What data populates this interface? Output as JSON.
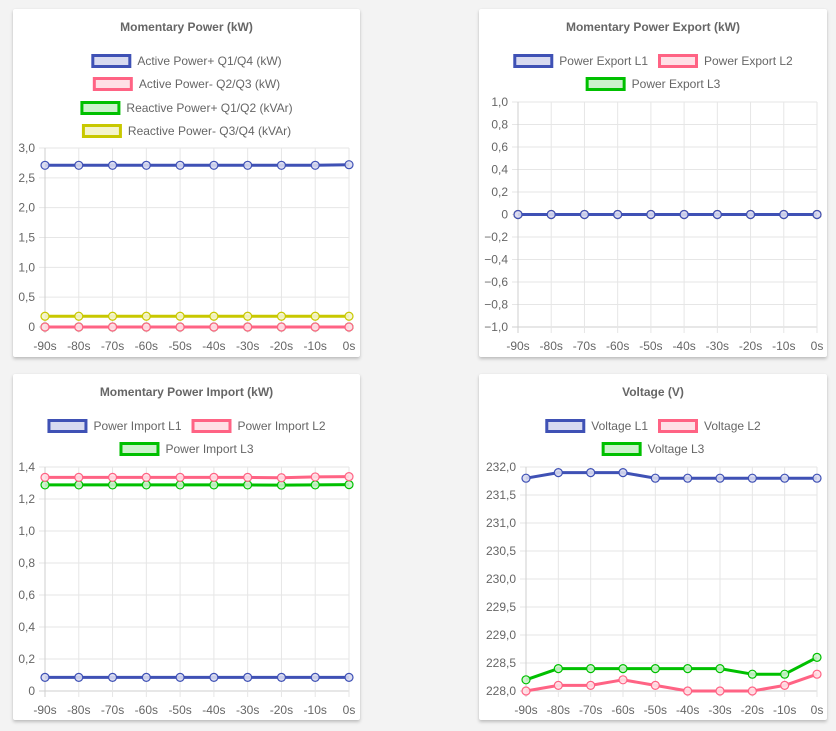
{
  "colors": {
    "blue": "#3f51b5",
    "blue_fill": "#d8daf0",
    "pink": "#ff6384",
    "pink_fill": "#ffe0e6",
    "green": "#00c000",
    "green_fill": "#ccf2cc",
    "yellow": "#c8c800",
    "yellow_fill": "#f4f4cc"
  },
  "chart_data": [
    {
      "id": "momentary-power",
      "type": "line",
      "title": "Momentary Power (kW)",
      "categories": [
        "-90s",
        "-80s",
        "-70s",
        "-60s",
        "-50s",
        "-40s",
        "-30s",
        "-20s",
        "-10s",
        "0s"
      ],
      "yticks": [
        "0",
        "0,5",
        "1,0",
        "1,5",
        "2,0",
        "2,5",
        "3,0"
      ],
      "ytick_values": [
        0,
        0.5,
        1.0,
        1.5,
        2.0,
        2.5,
        3.0
      ],
      "ylim": [
        0,
        3.0
      ],
      "legend_position": "top",
      "grid": true,
      "series": [
        {
          "name": "Active Power+ Q1/Q4 (kW)",
          "color": "blue",
          "values": [
            2.71,
            2.71,
            2.71,
            2.71,
            2.71,
            2.71,
            2.71,
            2.71,
            2.71,
            2.72
          ]
        },
        {
          "name": "Active Power- Q2/Q3 (kW)",
          "color": "pink",
          "values": [
            0,
            0,
            0,
            0,
            0,
            0,
            0,
            0,
            0,
            0
          ]
        },
        {
          "name": "Reactive Power+ Q1/Q2 (kVAr)",
          "color": "green",
          "values": [
            0,
            0,
            0,
            0,
            0,
            0,
            0,
            0,
            0,
            0
          ]
        },
        {
          "name": "Reactive Power- Q3/Q4 (kVAr)",
          "color": "yellow",
          "values": [
            0.18,
            0.18,
            0.18,
            0.18,
            0.18,
            0.18,
            0.18,
            0.18,
            0.18,
            0.18
          ]
        }
      ]
    },
    {
      "id": "momentary-power-export",
      "type": "line",
      "title": "Momentary Power Export (kW)",
      "categories": [
        "-90s",
        "-80s",
        "-70s",
        "-60s",
        "-50s",
        "-40s",
        "-30s",
        "-20s",
        "-10s",
        "0s"
      ],
      "yticks": [
        "−1,0",
        "−0,8",
        "−0,6",
        "−0,4",
        "−0,2",
        "0",
        "0,2",
        "0,4",
        "0,6",
        "0,8",
        "1,0"
      ],
      "ytick_values": [
        -1.0,
        -0.8,
        -0.6,
        -0.4,
        -0.2,
        0,
        0.2,
        0.4,
        0.6,
        0.8,
        1.0
      ],
      "ylim": [
        -1.0,
        1.0
      ],
      "legend_position": "top",
      "grid": true,
      "series": [
        {
          "name": "Power Export L1",
          "color": "blue",
          "values": [
            0,
            0,
            0,
            0,
            0,
            0,
            0,
            0,
            0,
            0
          ]
        },
        {
          "name": "Power Export L2",
          "color": "pink",
          "values": [
            0,
            0,
            0,
            0,
            0,
            0,
            0,
            0,
            0,
            0
          ]
        },
        {
          "name": "Power Export L3",
          "color": "green",
          "values": [
            0,
            0,
            0,
            0,
            0,
            0,
            0,
            0,
            0,
            0
          ]
        }
      ]
    },
    {
      "id": "momentary-power-import",
      "type": "line",
      "title": "Momentary Power Import (kW)",
      "categories": [
        "-90s",
        "-80s",
        "-70s",
        "-60s",
        "-50s",
        "-40s",
        "-30s",
        "-20s",
        "-10s",
        "0s"
      ],
      "yticks": [
        "0",
        "0,2",
        "0,4",
        "0,6",
        "0,8",
        "1,0",
        "1,2",
        "1,4"
      ],
      "ytick_values": [
        0,
        0.2,
        0.4,
        0.6,
        0.8,
        1.0,
        1.2,
        1.4
      ],
      "ylim": [
        0,
        1.4
      ],
      "legend_position": "top",
      "grid": true,
      "series": [
        {
          "name": "Power Import L1",
          "color": "blue",
          "values": [
            0.085,
            0.085,
            0.085,
            0.085,
            0.085,
            0.085,
            0.085,
            0.085,
            0.085,
            0.085
          ]
        },
        {
          "name": "Power Import L2",
          "color": "pink",
          "values": [
            1.335,
            1.335,
            1.335,
            1.335,
            1.335,
            1.335,
            1.335,
            1.333,
            1.338,
            1.34
          ]
        },
        {
          "name": "Power Import L3",
          "color": "green",
          "values": [
            1.288,
            1.288,
            1.288,
            1.288,
            1.288,
            1.288,
            1.288,
            1.287,
            1.288,
            1.29
          ]
        }
      ]
    },
    {
      "id": "voltage",
      "type": "line",
      "title": "Voltage (V)",
      "categories": [
        "-90s",
        "-80s",
        "-70s",
        "-60s",
        "-50s",
        "-40s",
        "-30s",
        "-20s",
        "-10s",
        "0s"
      ],
      "yticks": [
        "228,0",
        "228,5",
        "229,0",
        "229,5",
        "230,0",
        "230,5",
        "231,0",
        "231,5",
        "232,0"
      ],
      "ytick_values": [
        228.0,
        228.5,
        229.0,
        229.5,
        230.0,
        230.5,
        231.0,
        231.5,
        232.0
      ],
      "ylim": [
        228.0,
        232.0
      ],
      "legend_position": "top",
      "grid": true,
      "series": [
        {
          "name": "Voltage L1",
          "color": "blue",
          "values": [
            231.8,
            231.9,
            231.9,
            231.9,
            231.8,
            231.8,
            231.8,
            231.8,
            231.8,
            231.8
          ]
        },
        {
          "name": "Voltage L2",
          "color": "pink",
          "values": [
            228.0,
            228.1,
            228.1,
            228.2,
            228.1,
            228.0,
            228.0,
            228.0,
            228.1,
            228.3
          ]
        },
        {
          "name": "Voltage L3",
          "color": "green",
          "values": [
            228.2,
            228.4,
            228.4,
            228.4,
            228.4,
            228.4,
            228.4,
            228.3,
            228.3,
            228.6
          ]
        }
      ]
    }
  ]
}
